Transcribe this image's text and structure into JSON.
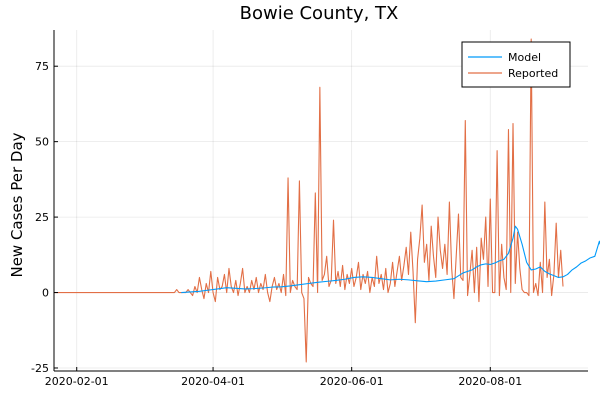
{
  "chart_data": {
    "type": "line",
    "title": "Bowie County, TX",
    "xlabel": "",
    "ylabel": "New Cases Per Day",
    "x_start": "2020-01-22",
    "x_range_days": [
      0,
      235
    ],
    "ylim": [
      -26,
      87
    ],
    "grid": true,
    "legend_position": "top-right",
    "xticks": [
      {
        "label": "2020-02-01",
        "day": 10
      },
      {
        "label": "2020-04-01",
        "day": 70
      },
      {
        "label": "2020-06-01",
        "day": 131
      },
      {
        "label": "2020-08-01",
        "day": 192
      }
    ],
    "yticks": [
      {
        "label": "-25",
        "value": -25
      },
      {
        "label": "0",
        "value": 0
      },
      {
        "label": "25",
        "value": 25
      },
      {
        "label": "50",
        "value": 50
      },
      {
        "label": "75",
        "value": 75
      }
    ],
    "series": [
      {
        "name": "Model",
        "color": "#009AFA",
        "points": [
          [
            56,
            0
          ],
          [
            60,
            0.2
          ],
          [
            64,
            0.4
          ],
          [
            68,
            0.8
          ],
          [
            72,
            1.2
          ],
          [
            76,
            1.6
          ],
          [
            80,
            1.4
          ],
          [
            84,
            1.2
          ],
          [
            88,
            1.3
          ],
          [
            92,
            1.5
          ],
          [
            96,
            1.8
          ],
          [
            100,
            1.9
          ],
          [
            104,
            2.2
          ],
          [
            108,
            2.6
          ],
          [
            112,
            3
          ],
          [
            116,
            3.4
          ],
          [
            120,
            3.7
          ],
          [
            124,
            4
          ],
          [
            128,
            4.4
          ],
          [
            132,
            5
          ],
          [
            136,
            5.2
          ],
          [
            140,
            5
          ],
          [
            144,
            4.6
          ],
          [
            148,
            4.2
          ],
          [
            152,
            4.4
          ],
          [
            156,
            4.2
          ],
          [
            160,
            3.9
          ],
          [
            164,
            3.6
          ],
          [
            168,
            3.8
          ],
          [
            172,
            4.2
          ],
          [
            176,
            4.6
          ],
          [
            180,
            6.5
          ],
          [
            184,
            7.5
          ],
          [
            186,
            8.5
          ],
          [
            188,
            9.2
          ],
          [
            190,
            9.5
          ],
          [
            192,
            9.3
          ],
          [
            194,
            9.8
          ],
          [
            196,
            10.5
          ],
          [
            198,
            11
          ],
          [
            200,
            13
          ],
          [
            202,
            18
          ],
          [
            203,
            22
          ],
          [
            204,
            21
          ],
          [
            206,
            16
          ],
          [
            208,
            10
          ],
          [
            210,
            7.5
          ],
          [
            212,
            7.8
          ],
          [
            214,
            8.5
          ],
          [
            216,
            7
          ],
          [
            218,
            6.2
          ],
          [
            220,
            5.6
          ],
          [
            222,
            5
          ],
          [
            224,
            5.2
          ],
          [
            226,
            6
          ],
          [
            228,
            7.5
          ],
          [
            230,
            8.5
          ],
          [
            232,
            9.8
          ],
          [
            234,
            10.5
          ],
          [
            236,
            11.5
          ],
          [
            238,
            12
          ],
          [
            240,
            17
          ],
          [
            242,
            12
          ],
          [
            244,
            10
          ],
          [
            246,
            11
          ],
          [
            248,
            10.5
          ],
          [
            250,
            11.2
          ],
          [
            252,
            10.2
          ]
        ]
      },
      {
        "name": "Reported",
        "color": "#E26F46",
        "points": [
          [
            0,
            0
          ],
          [
            53,
            0
          ],
          [
            54,
            1
          ],
          [
            55,
            0
          ],
          [
            58,
            0
          ],
          [
            59,
            1
          ],
          [
            60,
            0
          ],
          [
            61,
            -1
          ],
          [
            62,
            2
          ],
          [
            63,
            0
          ],
          [
            64,
            5
          ],
          [
            65,
            1
          ],
          [
            66,
            -2
          ],
          [
            67,
            3
          ],
          [
            68,
            0
          ],
          [
            69,
            7
          ],
          [
            70,
            0
          ],
          [
            71,
            -3
          ],
          [
            72,
            5
          ],
          [
            73,
            1
          ],
          [
            74,
            2
          ],
          [
            75,
            6
          ],
          [
            76,
            0
          ],
          [
            77,
            8
          ],
          [
            78,
            2
          ],
          [
            79,
            0
          ],
          [
            80,
            4
          ],
          [
            81,
            -1
          ],
          [
            82,
            3
          ],
          [
            83,
            8
          ],
          [
            84,
            0
          ],
          [
            85,
            2
          ],
          [
            86,
            0
          ],
          [
            87,
            4
          ],
          [
            88,
            1
          ],
          [
            89,
            5
          ],
          [
            90,
            0
          ],
          [
            91,
            3
          ],
          [
            92,
            1
          ],
          [
            93,
            6
          ],
          [
            94,
            0
          ],
          [
            95,
            -3
          ],
          [
            96,
            2
          ],
          [
            97,
            5
          ],
          [
            98,
            1
          ],
          [
            99,
            3
          ],
          [
            100,
            0
          ],
          [
            101,
            6
          ],
          [
            102,
            -1
          ],
          [
            103,
            38
          ],
          [
            104,
            0
          ],
          [
            105,
            4
          ],
          [
            106,
            2
          ],
          [
            107,
            1
          ],
          [
            108,
            37
          ],
          [
            109,
            0
          ],
          [
            110,
            -2
          ],
          [
            111,
            -23
          ],
          [
            112,
            5
          ],
          [
            113,
            3
          ],
          [
            114,
            2
          ],
          [
            115,
            33
          ],
          [
            116,
            0
          ],
          [
            117,
            68
          ],
          [
            118,
            4
          ],
          [
            119,
            6
          ],
          [
            120,
            12
          ],
          [
            121,
            2
          ],
          [
            122,
            4
          ],
          [
            123,
            24
          ],
          [
            124,
            3
          ],
          [
            125,
            7
          ],
          [
            126,
            2
          ],
          [
            127,
            9
          ],
          [
            128,
            1
          ],
          [
            129,
            6
          ],
          [
            130,
            3
          ],
          [
            131,
            8
          ],
          [
            132,
            2
          ],
          [
            133,
            5
          ],
          [
            134,
            10
          ],
          [
            135,
            1
          ],
          [
            136,
            6
          ],
          [
            137,
            3
          ],
          [
            138,
            7
          ],
          [
            139,
            0
          ],
          [
            140,
            5
          ],
          [
            141,
            2
          ],
          [
            142,
            12
          ],
          [
            143,
            3
          ],
          [
            144,
            6
          ],
          [
            145,
            1
          ],
          [
            146,
            8
          ],
          [
            147,
            0
          ],
          [
            148,
            3
          ],
          [
            149,
            10
          ],
          [
            150,
            2
          ],
          [
            151,
            7
          ],
          [
            152,
            12
          ],
          [
            153,
            4
          ],
          [
            154,
            9
          ],
          [
            155,
            15
          ],
          [
            156,
            6
          ],
          [
            157,
            20
          ],
          [
            158,
            7
          ],
          [
            159,
            -10
          ],
          [
            160,
            11
          ],
          [
            161,
            18
          ],
          [
            162,
            29
          ],
          [
            163,
            10
          ],
          [
            164,
            16
          ],
          [
            165,
            4
          ],
          [
            166,
            22
          ],
          [
            167,
            12
          ],
          [
            168,
            5
          ],
          [
            169,
            25
          ],
          [
            170,
            14
          ],
          [
            171,
            8
          ],
          [
            172,
            16
          ],
          [
            173,
            6
          ],
          [
            174,
            30
          ],
          [
            175,
            8
          ],
          [
            176,
            -2
          ],
          [
            177,
            12
          ],
          [
            178,
            26
          ],
          [
            179,
            5
          ],
          [
            180,
            4
          ],
          [
            181,
            57
          ],
          [
            182,
            -1
          ],
          [
            183,
            6
          ],
          [
            184,
            14
          ],
          [
            185,
            0
          ],
          [
            186,
            15
          ],
          [
            187,
            -3
          ],
          [
            188,
            18
          ],
          [
            189,
            11
          ],
          [
            190,
            25
          ],
          [
            191,
            2
          ],
          [
            192,
            31
          ],
          [
            193,
            0
          ],
          [
            194,
            0
          ],
          [
            195,
            47
          ],
          [
            196,
            -1
          ],
          [
            197,
            16
          ],
          [
            198,
            5
          ],
          [
            199,
            1
          ],
          [
            200,
            54
          ],
          [
            201,
            0
          ],
          [
            202,
            56
          ],
          [
            203,
            3
          ],
          [
            204,
            20
          ],
          [
            205,
            8
          ],
          [
            206,
            1
          ],
          [
            207,
            0
          ],
          [
            208,
            0
          ],
          [
            209,
            -1
          ],
          [
            210,
            84
          ],
          [
            211,
            0
          ],
          [
            212,
            3
          ],
          [
            213,
            -1
          ],
          [
            214,
            10
          ],
          [
            215,
            0
          ],
          [
            216,
            30
          ],
          [
            217,
            5
          ],
          [
            218,
            11
          ],
          [
            219,
            -1
          ],
          [
            220,
            6
          ],
          [
            221,
            23
          ],
          [
            222,
            5
          ],
          [
            223,
            14
          ],
          [
            224,
            2
          ]
        ]
      }
    ]
  }
}
